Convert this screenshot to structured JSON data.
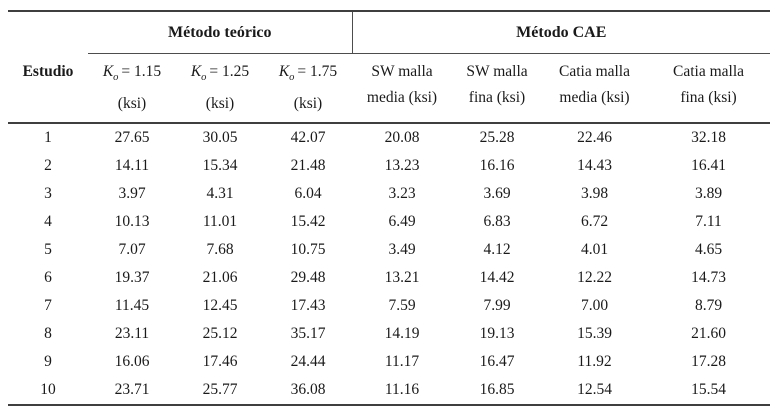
{
  "chart_data": {
    "type": "table",
    "group_headers": {
      "teorico": "Método teórico",
      "cae": "Método CAE"
    },
    "headers": {
      "estudio": "Estudio",
      "k1": {
        "sym": "K",
        "sub": "o",
        "eq": "= 1.15",
        "unit": "(ksi)"
      },
      "k2": {
        "sym": "K",
        "sub": "o",
        "eq": "= 1.25",
        "unit": "(ksi)"
      },
      "k3": {
        "sym": "K",
        "sub": "o",
        "eq": "= 1.75",
        "unit": "(ksi)"
      },
      "sw_media": {
        "line1": "SW malla",
        "line2": "media (ksi)"
      },
      "sw_fina": {
        "line1": "SW malla",
        "line2": "fina (ksi)"
      },
      "catia_media": {
        "line1": "Catia malla",
        "line2": "media (ksi)"
      },
      "catia_fina": {
        "line1": "Catia malla",
        "line2": "fina (ksi)"
      }
    },
    "columns_flat": [
      "Estudio",
      "Ko = 1.15 (ksi)",
      "Ko = 1.25 (ksi)",
      "Ko = 1.75 (ksi)",
      "SW malla media (ksi)",
      "SW malla fina (ksi)",
      "Catia malla media (ksi)",
      "Catia malla fina (ksi)"
    ],
    "rows": [
      [
        "1",
        "27.65",
        "30.05",
        "42.07",
        "20.08",
        "25.28",
        "22.46",
        "32.18"
      ],
      [
        "2",
        "14.11",
        "15.34",
        "21.48",
        "13.23",
        "16.16",
        "14.43",
        "16.41"
      ],
      [
        "3",
        "3.97",
        "4.31",
        "6.04",
        "3.23",
        "3.69",
        "3.98",
        "3.89"
      ],
      [
        "4",
        "10.13",
        "11.01",
        "15.42",
        "6.49",
        "6.83",
        "6.72",
        "7.11"
      ],
      [
        "5",
        "7.07",
        "7.68",
        "10.75",
        "3.49",
        "4.12",
        "4.01",
        "4.65"
      ],
      [
        "6",
        "19.37",
        "21.06",
        "29.48",
        "13.21",
        "14.42",
        "12.22",
        "14.73"
      ],
      [
        "7",
        "11.45",
        "12.45",
        "17.43",
        "7.59",
        "7.99",
        "7.00",
        "8.79"
      ],
      [
        "8",
        "23.11",
        "25.12",
        "35.17",
        "14.19",
        "19.13",
        "15.39",
        "21.60"
      ],
      [
        "9",
        "16.06",
        "17.46",
        "24.44",
        "11.17",
        "16.47",
        "11.92",
        "17.28"
      ],
      [
        "10",
        "23.71",
        "25.77",
        "36.08",
        "11.16",
        "16.85",
        "12.54",
        "15.54"
      ]
    ]
  },
  "colors": {
    "text": "#1a1a1a",
    "rule_heavy": "#3f3f3f",
    "rule_light": "#4d4d4d",
    "background": "#ffffff"
  }
}
